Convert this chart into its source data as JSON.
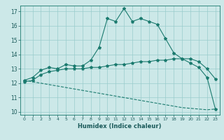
{
  "title": "",
  "xlabel": "Humidex (Indice chaleur)",
  "background_color": "#cce8e8",
  "grid_color": "#99cccc",
  "line_color": "#1a7a6e",
  "xlim": [
    -0.5,
    23.5
  ],
  "ylim": [
    9.8,
    17.4
  ],
  "yticks": [
    10,
    11,
    12,
    13,
    14,
    15,
    16,
    17
  ],
  "xticks": [
    0,
    1,
    2,
    3,
    4,
    5,
    6,
    7,
    8,
    9,
    10,
    11,
    12,
    13,
    14,
    15,
    16,
    17,
    18,
    19,
    20,
    21,
    22,
    23
  ],
  "line1_x": [
    0,
    1,
    2,
    3,
    4,
    5,
    6,
    7,
    8,
    9,
    10,
    11,
    12,
    13,
    14,
    15,
    16,
    17,
    18,
    19,
    20,
    21,
    22,
    23
  ],
  "line1_y": [
    12.2,
    12.4,
    12.9,
    13.1,
    13.0,
    13.3,
    13.2,
    13.2,
    13.6,
    14.5,
    16.5,
    16.3,
    17.2,
    16.3,
    16.5,
    16.3,
    16.1,
    15.1,
    14.1,
    13.7,
    13.4,
    13.1,
    12.4,
    10.2
  ],
  "line2_x": [
    0,
    1,
    2,
    3,
    4,
    5,
    6,
    7,
    8,
    9,
    10,
    11,
    12,
    13,
    14,
    15,
    16,
    17,
    18,
    19,
    20,
    21,
    22,
    23
  ],
  "line2_y": [
    12.1,
    12.2,
    12.6,
    12.8,
    12.9,
    13.0,
    13.0,
    13.0,
    13.1,
    13.1,
    13.2,
    13.3,
    13.3,
    13.4,
    13.5,
    13.5,
    13.6,
    13.6,
    13.7,
    13.7,
    13.7,
    13.5,
    13.0,
    12.3
  ],
  "line3_x": [
    0,
    1,
    2,
    3,
    4,
    5,
    6,
    7,
    8,
    9,
    10,
    11,
    12,
    13,
    14,
    15,
    16,
    17,
    18,
    19,
    20,
    21,
    22,
    23
  ],
  "line3_y": [
    12.2,
    12.1,
    12.0,
    11.9,
    11.8,
    11.7,
    11.6,
    11.5,
    11.4,
    11.3,
    11.2,
    11.1,
    11.0,
    10.9,
    10.8,
    10.7,
    10.6,
    10.5,
    10.4,
    10.3,
    10.25,
    10.2,
    10.15,
    10.2
  ]
}
